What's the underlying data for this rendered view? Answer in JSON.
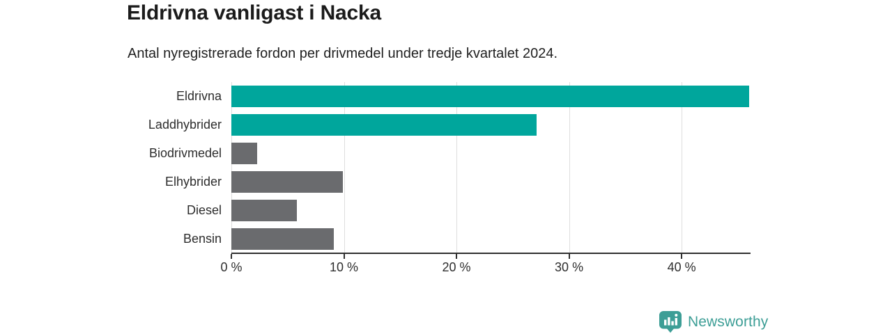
{
  "header": {
    "title": "Eldrivna vanligast i Nacka",
    "subtitle": "Antal nyregistrerade fordon per drivmedel under tredje kvartalet 2024."
  },
  "chart_data": {
    "type": "bar",
    "orientation": "horizontal",
    "title": "Eldrivna vanligast i Nacka",
    "subtitle": "Antal nyregistrerade fordon per drivmedel under tredje kvartalet 2024.",
    "categories": [
      "Eldrivna",
      "Laddhybrider",
      "Biodrivmedel",
      "Elhybrider",
      "Diesel",
      "Bensin"
    ],
    "values": [
      46.0,
      27.1,
      2.3,
      9.9,
      5.8,
      9.1
    ],
    "unit": "%",
    "xlim": [
      0,
      46
    ],
    "xticks": [
      0,
      10,
      20,
      30,
      40
    ],
    "xtick_labels": [
      "0 %",
      "10 %",
      "20 %",
      "30 %",
      "40 %"
    ],
    "bar_colors": [
      "#00a69c",
      "#00a69c",
      "#6a6b6e",
      "#6a6b6e",
      "#6a6b6e",
      "#6a6b6e"
    ],
    "grid": "vertical",
    "legend": "none",
    "xlabel": "",
    "ylabel": ""
  },
  "colors": {
    "teal": "#00a69c",
    "gray": "#6a6b6e",
    "gridline": "#dedede",
    "axis": "#2f2f2f",
    "title_text": "#1b1b1b",
    "logo_teal": "#3d9e96"
  },
  "footer": {
    "brand": "Newsworthy"
  }
}
